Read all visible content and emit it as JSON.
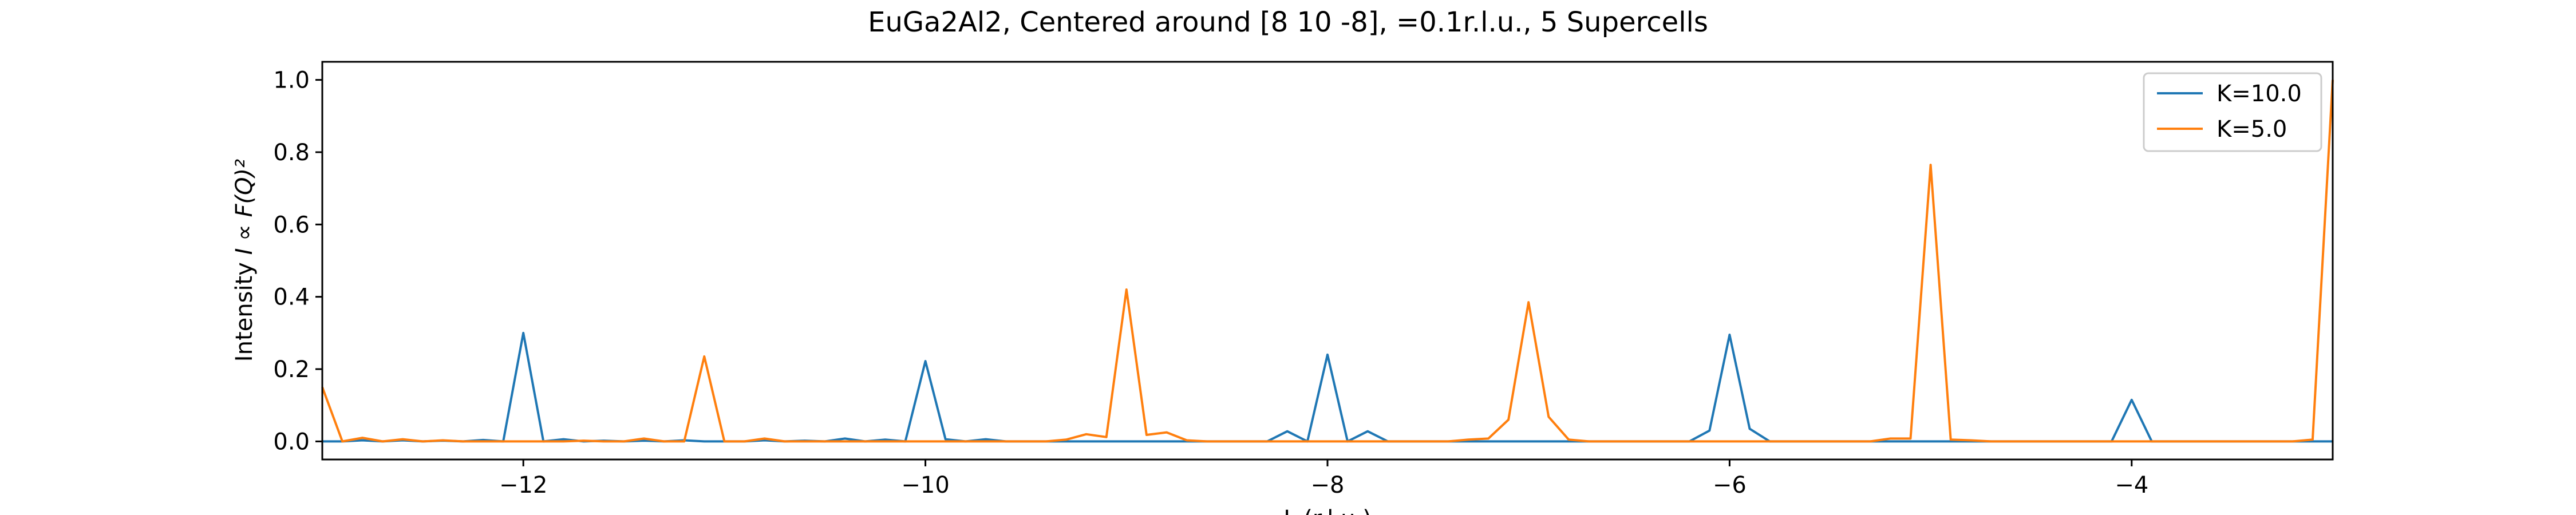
{
  "chart_data": {
    "type": "line",
    "title": "EuGa2Al2, Centered around [8 10 -8], =0.1r.l.u., 5 Supercells",
    "xlabel": "L (r.l.u.)",
    "ylabel_prefix": "Intensity ",
    "ylabel_formula": "I ∝ F(Q)²",
    "xlim": [
      -13.0,
      -3.0
    ],
    "ylim": [
      -0.05,
      1.05
    ],
    "xticks": [
      -12,
      -10,
      -8,
      -6,
      -4
    ],
    "xtick_labels": [
      "−12",
      "−10",
      "−8",
      "−6",
      "−4"
    ],
    "yticks": [
      0.0,
      0.2,
      0.4,
      0.6,
      0.8,
      1.0
    ],
    "ytick_labels": [
      "0.0",
      "0.2",
      "0.4",
      "0.6",
      "0.8",
      "1.0"
    ],
    "grid": false,
    "legend_position": "top-right",
    "series": [
      {
        "name": "K=10.0",
        "color": "#1f77b4",
        "x": [
          -13.0,
          -12.9,
          -12.8,
          -12.7,
          -12.6,
          -12.5,
          -12.4,
          -12.3,
          -12.2,
          -12.1,
          -12.0,
          -11.9,
          -11.8,
          -11.7,
          -11.6,
          -11.5,
          -11.4,
          -11.3,
          -11.2,
          -11.1,
          -11.0,
          -10.9,
          -10.8,
          -10.7,
          -10.6,
          -10.5,
          -10.4,
          -10.3,
          -10.2,
          -10.1,
          -10.0,
          -9.9,
          -9.8,
          -9.7,
          -9.6,
          -9.5,
          -9.4,
          -9.3,
          -9.2,
          -9.1,
          -9.0,
          -8.9,
          -8.8,
          -8.7,
          -8.6,
          -8.5,
          -8.4,
          -8.3,
          -8.2,
          -8.1,
          -8.0,
          -7.9,
          -7.8,
          -7.7,
          -7.6,
          -7.5,
          -7.4,
          -7.3,
          -7.2,
          -7.1,
          -7.0,
          -6.9,
          -6.8,
          -6.7,
          -6.6,
          -6.5,
          -6.4,
          -6.3,
          -6.2,
          -6.1,
          -6.0,
          -5.9,
          -5.8,
          -5.7,
          -5.6,
          -5.5,
          -5.4,
          -5.3,
          -5.2,
          -5.1,
          -5.0,
          -4.9,
          -4.8,
          -4.7,
          -4.6,
          -4.5,
          -4.4,
          -4.3,
          -4.2,
          -4.1,
          -4.0,
          -3.9,
          -3.8,
          -3.7,
          -3.6,
          -3.5,
          -3.4,
          -3.3,
          -3.2,
          -3.1,
          -3.0
        ],
        "y": [
          0.0,
          0.0,
          0.003,
          0.0,
          0.003,
          0.0,
          0.002,
          0.0,
          0.004,
          0.0,
          0.3,
          0.0,
          0.006,
          0.0,
          0.002,
          0.0,
          0.002,
          0.0,
          0.003,
          0.0,
          0.0,
          0.0,
          0.003,
          0.0,
          0.002,
          0.0,
          0.008,
          0.0,
          0.005,
          0.0,
          0.222,
          0.006,
          0.0,
          0.006,
          0.0,
          0.0,
          0.0,
          0.0,
          0.0,
          0.0,
          0.0,
          0.0,
          0.0,
          0.0,
          0.0,
          0.0,
          0.0,
          0.0,
          0.028,
          0.0,
          0.24,
          0.0,
          0.028,
          0.0,
          0.0,
          0.0,
          0.0,
          0.0,
          0.0,
          0.0,
          0.0,
          0.0,
          0.0,
          0.0,
          0.0,
          0.0,
          0.0,
          0.0,
          0.0,
          0.03,
          0.295,
          0.035,
          0.0,
          0.0,
          0.0,
          0.0,
          0.0,
          0.0,
          0.0,
          0.0,
          0.0,
          0.0,
          0.0,
          0.0,
          0.0,
          0.0,
          0.0,
          0.0,
          0.0,
          0.0,
          0.115,
          0.0,
          0.0,
          0.0,
          0.0,
          0.0,
          0.0,
          0.0,
          0.0,
          0.0,
          0.0
        ]
      },
      {
        "name": "K=5.0",
        "color": "#ff7f0e",
        "x": [
          -13.0,
          -12.9,
          -12.8,
          -12.7,
          -12.6,
          -12.5,
          -12.4,
          -12.3,
          -12.2,
          -12.1,
          -12.0,
          -11.9,
          -11.8,
          -11.7,
          -11.6,
          -11.5,
          -11.4,
          -11.3,
          -11.2,
          -11.1,
          -11.0,
          -10.9,
          -10.8,
          -10.7,
          -10.6,
          -10.5,
          -10.4,
          -10.3,
          -10.2,
          -10.1,
          -10.0,
          -9.9,
          -9.8,
          -9.7,
          -9.6,
          -9.5,
          -9.4,
          -9.3,
          -9.2,
          -9.1,
          -9.0,
          -8.9,
          -8.8,
          -8.7,
          -8.6,
          -8.5,
          -8.4,
          -8.3,
          -8.2,
          -8.1,
          -8.0,
          -7.9,
          -7.8,
          -7.7,
          -7.6,
          -7.5,
          -7.4,
          -7.3,
          -7.2,
          -7.1,
          -7.0,
          -6.9,
          -6.8,
          -6.7,
          -6.6,
          -6.5,
          -6.4,
          -6.3,
          -6.2,
          -6.1,
          -6.0,
          -5.9,
          -5.8,
          -5.7,
          -5.6,
          -5.5,
          -5.4,
          -5.3,
          -5.2,
          -5.1,
          -5.0,
          -4.9,
          -4.8,
          -4.7,
          -4.6,
          -4.5,
          -4.4,
          -4.3,
          -4.2,
          -4.1,
          -4.0,
          -3.9,
          -3.8,
          -3.7,
          -3.6,
          -3.5,
          -3.4,
          -3.3,
          -3.2,
          -3.1,
          -3.0
        ],
        "y": [
          0.15,
          0.0,
          0.01,
          0.0,
          0.006,
          0.0,
          0.003,
          0.0,
          0.0,
          0.0,
          0.0,
          0.0,
          0.0,
          0.002,
          0.0,
          0.0,
          0.008,
          0.0,
          0.0,
          0.235,
          0.0,
          0.0,
          0.008,
          0.0,
          0.0,
          0.0,
          0.0,
          0.0,
          0.0,
          0.0,
          0.0,
          0.0,
          0.0,
          0.0,
          0.0,
          0.0,
          0.0,
          0.005,
          0.02,
          0.012,
          0.42,
          0.018,
          0.025,
          0.003,
          0.0,
          0.0,
          0.0,
          0.0,
          0.0,
          0.0,
          0.0,
          0.0,
          0.0,
          0.0,
          0.0,
          0.0,
          0.0,
          0.005,
          0.008,
          0.06,
          0.385,
          0.068,
          0.005,
          0.0,
          0.0,
          0.0,
          0.0,
          0.0,
          0.0,
          0.0,
          0.0,
          0.0,
          0.0,
          0.0,
          0.0,
          0.0,
          0.0,
          0.0,
          0.008,
          0.008,
          0.765,
          0.005,
          0.003,
          0.0,
          0.0,
          0.0,
          0.0,
          0.0,
          0.0,
          0.0,
          0.0,
          0.0,
          0.0,
          0.0,
          0.0,
          0.0,
          0.0,
          0.0,
          0.0,
          0.005,
          1.0
        ]
      }
    ]
  }
}
